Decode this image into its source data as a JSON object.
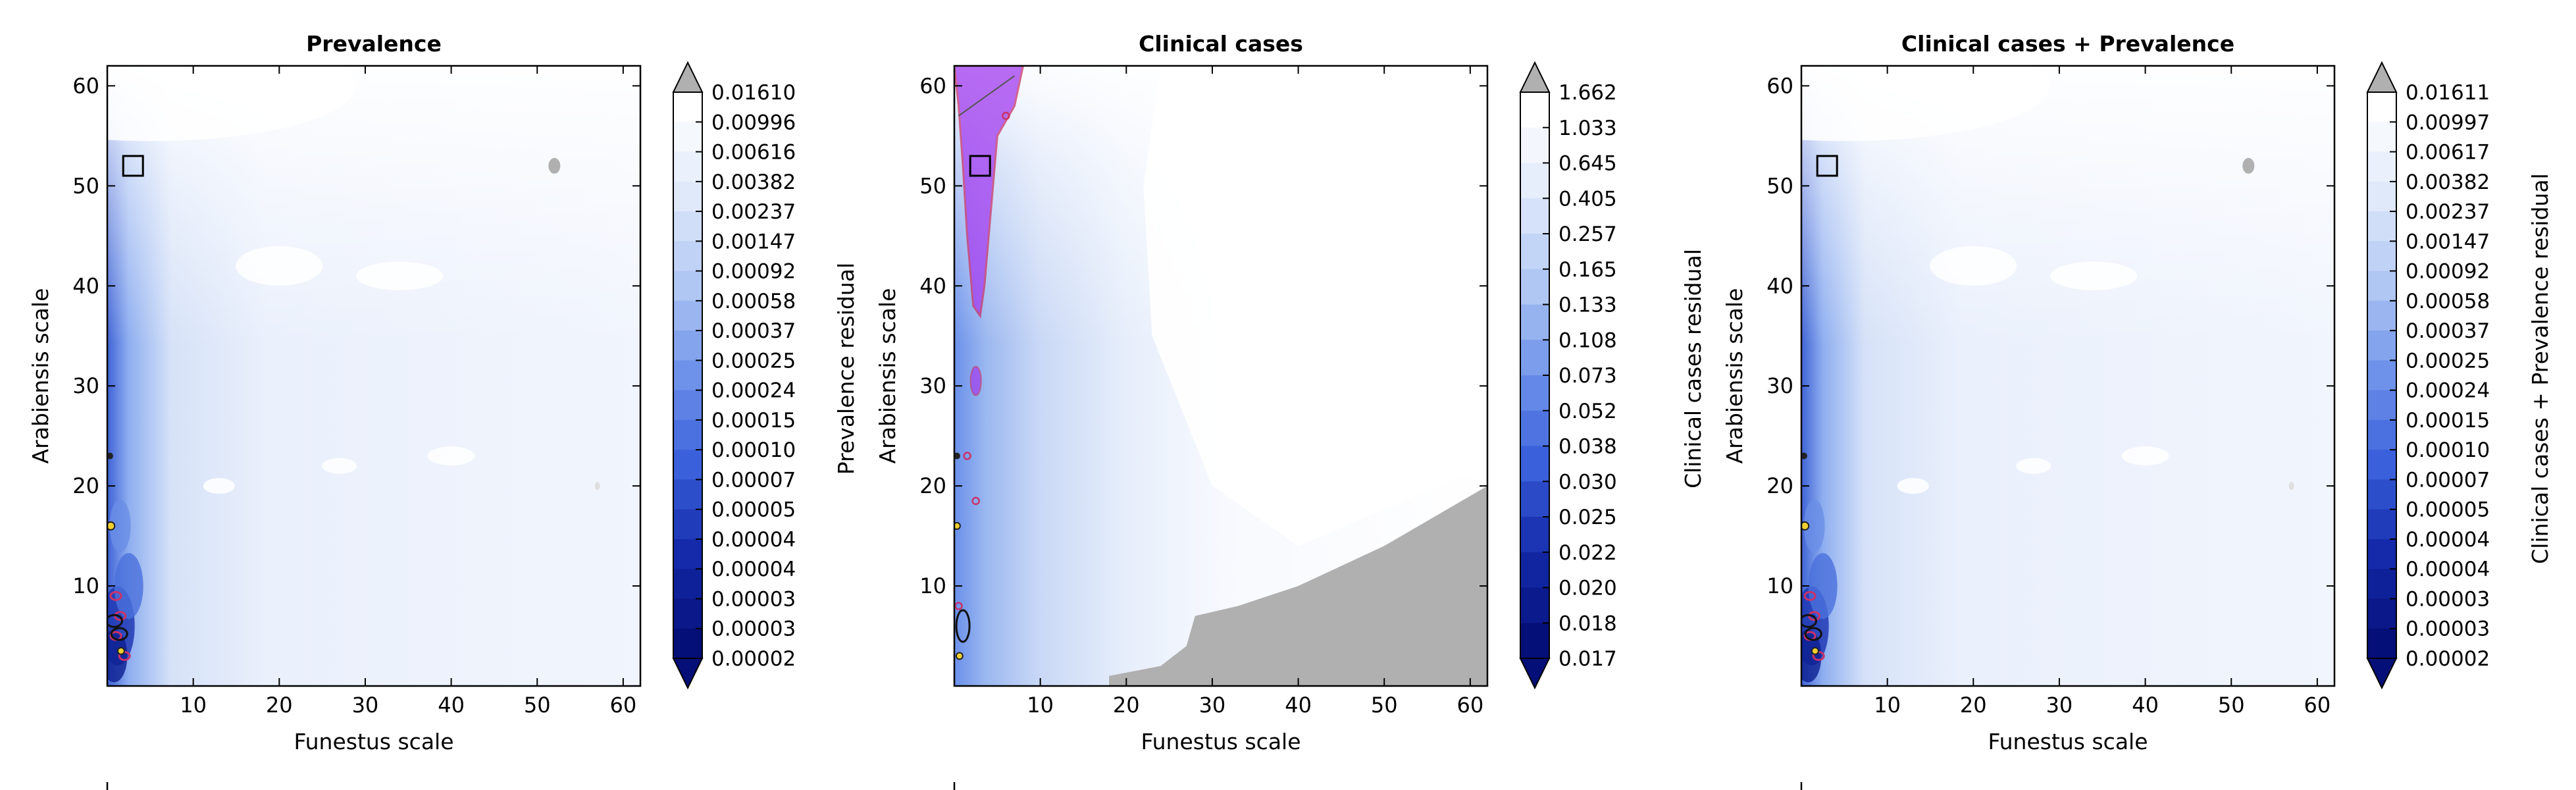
{
  "chart_data": [
    {
      "type": "heatmap",
      "title": "Prevalence",
      "xlabel": "Funestus scale",
      "ylabel": "Arabiensis scale",
      "xlim": [
        0,
        62
      ],
      "ylim": [
        0,
        62
      ],
      "x_ticks": [
        10,
        20,
        30,
        40,
        50,
        60
      ],
      "y_ticks": [
        10,
        20,
        30,
        40,
        50,
        60
      ],
      "colorbar": {
        "label": "Prevalence residual",
        "ticks": [
          "0.01610",
          "0.00996",
          "0.00616",
          "0.00382",
          "0.00237",
          "0.00147",
          "0.00092",
          "0.00058",
          "0.00037",
          "0.00025",
          "0.00024",
          "0.00015",
          "0.00010",
          "0.00007",
          "0.00005",
          "0.00004",
          "0.00004",
          "0.00003",
          "0.00003",
          "0.00002"
        ]
      },
      "marker_square": {
        "x": 3,
        "y": 52
      },
      "grey_regions": [
        {
          "x": 52,
          "y": 52
        }
      ]
    },
    {
      "type": "heatmap",
      "title": "Clinical cases",
      "xlabel": "Funestus scale",
      "ylabel": "Arabiensis scale",
      "xlim": [
        0,
        62
      ],
      "ylim": [
        0,
        62
      ],
      "x_ticks": [
        10,
        20,
        30,
        40,
        50,
        60
      ],
      "y_ticks": [
        10,
        20,
        30,
        40,
        50,
        60
      ],
      "colorbar": {
        "label": "Clinical cases residual",
        "ticks": [
          "1.662",
          "1.033",
          "0.645",
          "0.405",
          "0.257",
          "0.165",
          "0.133",
          "0.108",
          "0.073",
          "0.052",
          "0.038",
          "0.030",
          "0.025",
          "0.022",
          "0.020",
          "0.018",
          "0.017"
        ]
      },
      "marker_square": {
        "x": 3,
        "y": 52
      },
      "grey_regions": [
        {
          "x": 44,
          "y": 5
        }
      ]
    },
    {
      "type": "heatmap",
      "title": "Clinical cases + Prevalence",
      "xlabel": "Funestus scale",
      "ylabel": "Arabiensis scale",
      "xlim": [
        0,
        62
      ],
      "ylim": [
        0,
        62
      ],
      "x_ticks": [
        10,
        20,
        30,
        40,
        50,
        60
      ],
      "y_ticks": [
        10,
        20,
        30,
        40,
        50,
        60
      ],
      "colorbar": {
        "label": "Clinical cases + Prevalence residual",
        "ticks": [
          "0.01611",
          "0.00997",
          "0.00617",
          "0.00382",
          "0.00237",
          "0.00147",
          "0.00092",
          "0.00058",
          "0.00037",
          "0.00025",
          "0.00024",
          "0.00015",
          "0.00010",
          "0.00007",
          "0.00005",
          "0.00004",
          "0.00004",
          "0.00003",
          "0.00003",
          "0.00002"
        ]
      },
      "marker_square": {
        "x": 3,
        "y": 52
      },
      "grey_regions": [
        {
          "x": 52,
          "y": 52
        }
      ]
    }
  ],
  "colors": {
    "dark": "#0a1f8f",
    "mid": "#5a86e6",
    "light": "#c9d8f6",
    "pale": "#eef3fd",
    "grey": "#b0b0b0",
    "magenta": "#a23cf0",
    "magenta_edge": "#c8336a"
  },
  "icons": [
    "colorbar-extend-up-icon",
    "colorbar-extend-down-icon"
  ]
}
